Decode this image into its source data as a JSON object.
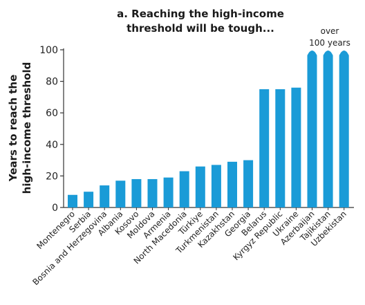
{
  "chart_data": {
    "type": "bar",
    "title_lines": [
      "a. Reaching the high-income",
      "threshold will be tough..."
    ],
    "ylabel_lines": [
      "Years to reach the",
      "high-income threshold"
    ],
    "xlabel": "",
    "ylim": [
      0,
      100
    ],
    "yticks": [
      0,
      20,
      40,
      60,
      80,
      100
    ],
    "grid": false,
    "categories": [
      "Montenegro",
      "Serbia",
      "Bosnia and Herzegovina",
      "Albania",
      "Kosovo",
      "Moldova",
      "Armenia",
      "North Macedonia",
      "Türkiye",
      "Turkmenistan",
      "Kazakhstan",
      "Georgia",
      "Belarus",
      "Kyrgyz Republic",
      "Ukraine",
      "Azerbaijan",
      "Tajikistan",
      "Uzbekistan"
    ],
    "values": [
      8,
      10,
      14,
      17,
      18,
      18,
      19,
      23,
      26,
      27,
      29,
      30,
      75,
      75,
      76,
      100,
      100,
      100
    ],
    "truncated_above": 100,
    "annotation_lines": [
      "over",
      "100 years"
    ],
    "bar_color": "#1a9bd7",
    "axis_color": "#333333"
  }
}
